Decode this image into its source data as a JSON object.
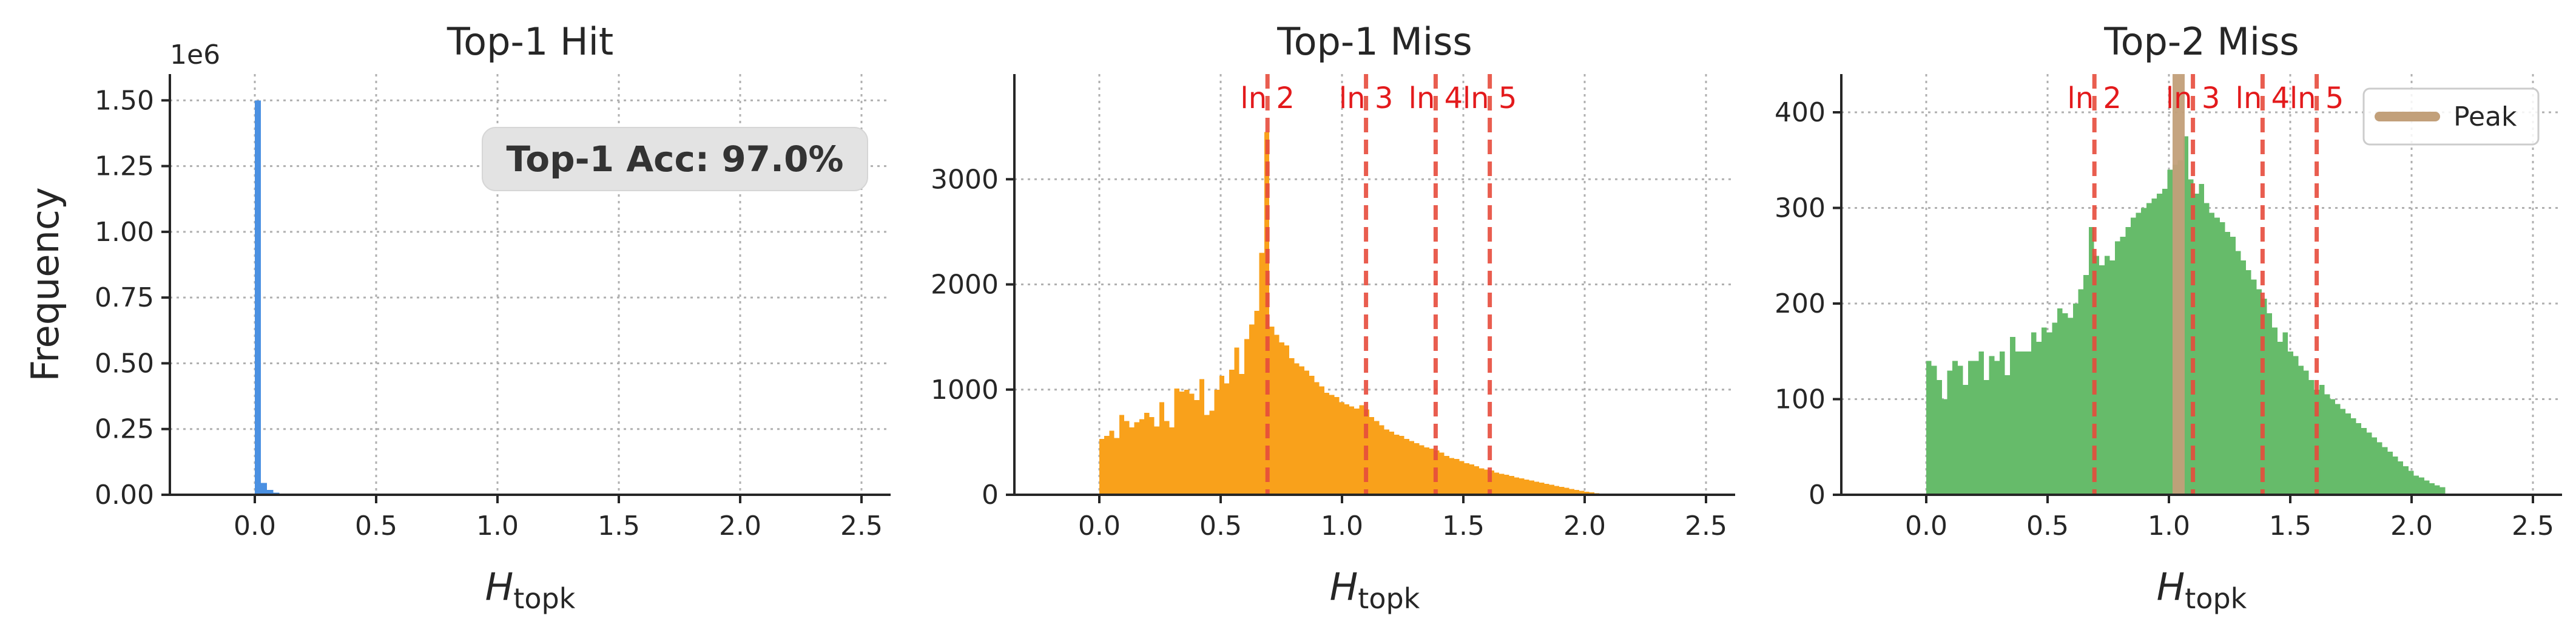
{
  "chart_data": [
    {
      "type": "bar",
      "title": "Top-1 Hit",
      "xlabel": "H",
      "xlabel_subscript": "topk",
      "ylabel": "Frequency",
      "y_scale_label": "1e6",
      "xlim": [
        -0.35,
        2.62
      ],
      "ylim": [
        0,
        1.6
      ],
      "x_ticks": [
        "0.0",
        "0.5",
        "1.0",
        "1.5",
        "2.0",
        "2.5"
      ],
      "y_ticks": [
        "0.00",
        "0.25",
        "0.50",
        "0.75",
        "1.00",
        "1.25",
        "1.50"
      ],
      "grid": true,
      "color": "#4a90e2",
      "annotation": "Top-1 Acc: 97.0%",
      "bin_width": 0.0253,
      "bins": [
        [
          0.0,
          1.5
        ],
        [
          0.0253,
          0.045
        ],
        [
          0.0506,
          0.018
        ],
        [
          0.0759,
          0.008
        ],
        [
          0.1012,
          0.004
        ],
        [
          0.1265,
          0.002
        ]
      ]
    },
    {
      "type": "bar",
      "title": "Top-1 Miss",
      "xlabel": "H",
      "xlabel_subscript": "topk",
      "xlim": [
        -0.35,
        2.62
      ],
      "ylim": [
        0,
        4000
      ],
      "x_ticks": [
        "0.0",
        "0.5",
        "1.0",
        "1.5",
        "2.0",
        "2.5"
      ],
      "y_ticks": [
        "0",
        "1000",
        "2000",
        "3000"
      ],
      "grid": true,
      "color": "#f9a11b",
      "bin_width": 0.0206,
      "vlines": [
        {
          "x": 0.693,
          "label": "ln 2"
        },
        {
          "x": 1.099,
          "label": "ln 3"
        },
        {
          "x": 1.386,
          "label": "ln 4"
        },
        {
          "x": 1.609,
          "label": "ln 5"
        }
      ],
      "bins": [
        [
          0.0,
          530
        ],
        [
          0.0206,
          560
        ],
        [
          0.0412,
          610
        ],
        [
          0.0618,
          540
        ],
        [
          0.0824,
          760
        ],
        [
          0.103,
          700
        ],
        [
          0.1236,
          640
        ],
        [
          0.1442,
          690
        ],
        [
          0.1648,
          720
        ],
        [
          0.1854,
          780
        ],
        [
          0.206,
          740
        ],
        [
          0.2266,
          650
        ],
        [
          0.2472,
          880
        ],
        [
          0.2678,
          700
        ],
        [
          0.2884,
          640
        ],
        [
          0.309,
          1010
        ],
        [
          0.3296,
          980
        ],
        [
          0.3502,
          1000
        ],
        [
          0.3708,
          960
        ],
        [
          0.3914,
          900
        ],
        [
          0.412,
          1100
        ],
        [
          0.4326,
          760
        ],
        [
          0.4532,
          800
        ],
        [
          0.4738,
          1000
        ],
        [
          0.4944,
          1130
        ],
        [
          0.515,
          1060
        ],
        [
          0.5356,
          1190
        ],
        [
          0.5562,
          1400
        ],
        [
          0.5768,
          1150
        ],
        [
          0.5974,
          1480
        ],
        [
          0.618,
          1620
        ],
        [
          0.6386,
          1750
        ],
        [
          0.6592,
          2300
        ],
        [
          0.6798,
          3450
        ],
        [
          0.7004,
          1600
        ],
        [
          0.721,
          1520
        ],
        [
          0.7416,
          1450
        ],
        [
          0.7622,
          1420
        ],
        [
          0.7828,
          1300
        ],
        [
          0.8034,
          1250
        ],
        [
          0.824,
          1220
        ],
        [
          0.8446,
          1180
        ],
        [
          0.8652,
          1130
        ],
        [
          0.8858,
          1070
        ],
        [
          0.9064,
          1030
        ],
        [
          0.927,
          970
        ],
        [
          0.9476,
          950
        ],
        [
          0.9682,
          930
        ],
        [
          0.9888,
          880
        ],
        [
          1.0094,
          860
        ],
        [
          1.03,
          840
        ],
        [
          1.0506,
          820
        ],
        [
          1.0712,
          850
        ],
        [
          1.0918,
          810
        ],
        [
          1.1124,
          740
        ],
        [
          1.133,
          700
        ],
        [
          1.1536,
          660
        ],
        [
          1.1742,
          620
        ],
        [
          1.1948,
          600
        ],
        [
          1.2154,
          570
        ],
        [
          1.236,
          560
        ],
        [
          1.2566,
          530
        ],
        [
          1.2772,
          510
        ],
        [
          1.2978,
          490
        ],
        [
          1.3184,
          470
        ],
        [
          1.339,
          450
        ],
        [
          1.3596,
          440
        ],
        [
          1.3802,
          420
        ],
        [
          1.4008,
          400
        ],
        [
          1.4214,
          370
        ],
        [
          1.442,
          350
        ],
        [
          1.4626,
          340
        ],
        [
          1.4832,
          320
        ],
        [
          1.5038,
          300
        ],
        [
          1.5244,
          290
        ],
        [
          1.545,
          270
        ],
        [
          1.5656,
          250
        ],
        [
          1.5862,
          240
        ],
        [
          1.6068,
          230
        ],
        [
          1.6274,
          210
        ],
        [
          1.648,
          200
        ],
        [
          1.6686,
          190
        ],
        [
          1.6892,
          180
        ],
        [
          1.7098,
          165
        ],
        [
          1.7304,
          155
        ],
        [
          1.751,
          145
        ],
        [
          1.7716,
          135
        ],
        [
          1.7922,
          125
        ],
        [
          1.8128,
          115
        ],
        [
          1.8334,
          105
        ],
        [
          1.854,
          95
        ],
        [
          1.8746,
          85
        ],
        [
          1.8952,
          75
        ],
        [
          1.9158,
          65
        ],
        [
          1.9364,
          55
        ],
        [
          1.957,
          45
        ],
        [
          1.9776,
          38
        ],
        [
          1.9982,
          30
        ],
        [
          2.0188,
          22
        ],
        [
          2.0394,
          15
        ]
      ]
    },
    {
      "type": "bar",
      "title": "Top-2 Miss",
      "xlabel": "H",
      "xlabel_subscript": "topk",
      "xlim": [
        -0.35,
        2.62
      ],
      "ylim": [
        0,
        440
      ],
      "x_ticks": [
        "0.0",
        "0.5",
        "1.0",
        "1.5",
        "2.0",
        "2.5"
      ],
      "y_ticks": [
        "0",
        "100",
        "200",
        "300",
        "400"
      ],
      "grid": true,
      "color": "#66bb6a",
      "bin_width": 0.0216,
      "legend": {
        "label": "Peak",
        "position": "top-right",
        "color": "#c2a07a"
      },
      "peak_x": 1.04,
      "vlines": [
        {
          "x": 0.693,
          "label": "ln 2"
        },
        {
          "x": 1.099,
          "label": "ln 3"
        },
        {
          "x": 1.386,
          "label": "ln 4"
        },
        {
          "x": 1.609,
          "label": "ln 5"
        }
      ],
      "bins": [
        [
          0.0,
          140
        ],
        [
          0.0216,
          135
        ],
        [
          0.0432,
          120
        ],
        [
          0.0648,
          100
        ],
        [
          0.0864,
          130
        ],
        [
          0.108,
          140
        ],
        [
          0.1296,
          135
        ],
        [
          0.1512,
          115
        ],
        [
          0.1728,
          140
        ],
        [
          0.1944,
          140
        ],
        [
          0.216,
          150
        ],
        [
          0.2376,
          120
        ],
        [
          0.2592,
          145
        ],
        [
          0.2808,
          140
        ],
        [
          0.3024,
          150
        ],
        [
          0.324,
          125
        ],
        [
          0.3456,
          165
        ],
        [
          0.3672,
          150
        ],
        [
          0.3888,
          150
        ],
        [
          0.4104,
          150
        ],
        [
          0.432,
          170
        ],
        [
          0.4536,
          160
        ],
        [
          0.4752,
          175
        ],
        [
          0.4968,
          170
        ],
        [
          0.5184,
          180
        ],
        [
          0.54,
          195
        ],
        [
          0.5616,
          190
        ],
        [
          0.5832,
          185
        ],
        [
          0.6048,
          200
        ],
        [
          0.6264,
          215
        ],
        [
          0.648,
          230
        ],
        [
          0.6696,
          280
        ],
        [
          0.6912,
          250
        ],
        [
          0.7128,
          240
        ],
        [
          0.7344,
          250
        ],
        [
          0.756,
          245
        ],
        [
          0.7776,
          265
        ],
        [
          0.7992,
          270
        ],
        [
          0.8208,
          280
        ],
        [
          0.8424,
          290
        ],
        [
          0.864,
          295
        ],
        [
          0.8856,
          300
        ],
        [
          0.9072,
          305
        ],
        [
          0.9288,
          310
        ],
        [
          0.9504,
          315
        ],
        [
          0.972,
          320
        ],
        [
          0.9936,
          340
        ],
        [
          1.0152,
          345
        ],
        [
          1.0368,
          350
        ],
        [
          1.0584,
          375
        ],
        [
          1.08,
          330
        ],
        [
          1.1016,
          315
        ],
        [
          1.1232,
          325
        ],
        [
          1.1448,
          305
        ],
        [
          1.1664,
          295
        ],
        [
          1.188,
          290
        ],
        [
          1.2096,
          285
        ],
        [
          1.2312,
          275
        ],
        [
          1.2528,
          270
        ],
        [
          1.2744,
          255
        ],
        [
          1.296,
          245
        ],
        [
          1.3176,
          235
        ],
        [
          1.3392,
          225
        ],
        [
          1.3608,
          215
        ],
        [
          1.3824,
          205
        ],
        [
          1.404,
          190
        ],
        [
          1.4256,
          175
        ],
        [
          1.4472,
          160
        ],
        [
          1.4688,
          170
        ],
        [
          1.4904,
          150
        ],
        [
          1.512,
          145
        ],
        [
          1.5336,
          135
        ],
        [
          1.5552,
          130
        ],
        [
          1.5768,
          120
        ],
        [
          1.5984,
          110
        ],
        [
          1.62,
          115
        ],
        [
          1.6416,
          105
        ],
        [
          1.6632,
          100
        ],
        [
          1.6848,
          95
        ],
        [
          1.7064,
          90
        ],
        [
          1.728,
          85
        ],
        [
          1.7496,
          80
        ],
        [
          1.7712,
          75
        ],
        [
          1.7928,
          70
        ],
        [
          1.8144,
          65
        ],
        [
          1.836,
          60
        ],
        [
          1.8576,
          55
        ],
        [
          1.8792,
          50
        ],
        [
          1.9008,
          45
        ],
        [
          1.9224,
          40
        ],
        [
          1.944,
          35
        ],
        [
          1.9656,
          30
        ],
        [
          1.9872,
          25
        ],
        [
          2.0088,
          20
        ],
        [
          2.0304,
          18
        ],
        [
          2.052,
          15
        ],
        [
          2.0736,
          12
        ],
        [
          2.0952,
          10
        ],
        [
          2.1168,
          8
        ]
      ]
    }
  ]
}
